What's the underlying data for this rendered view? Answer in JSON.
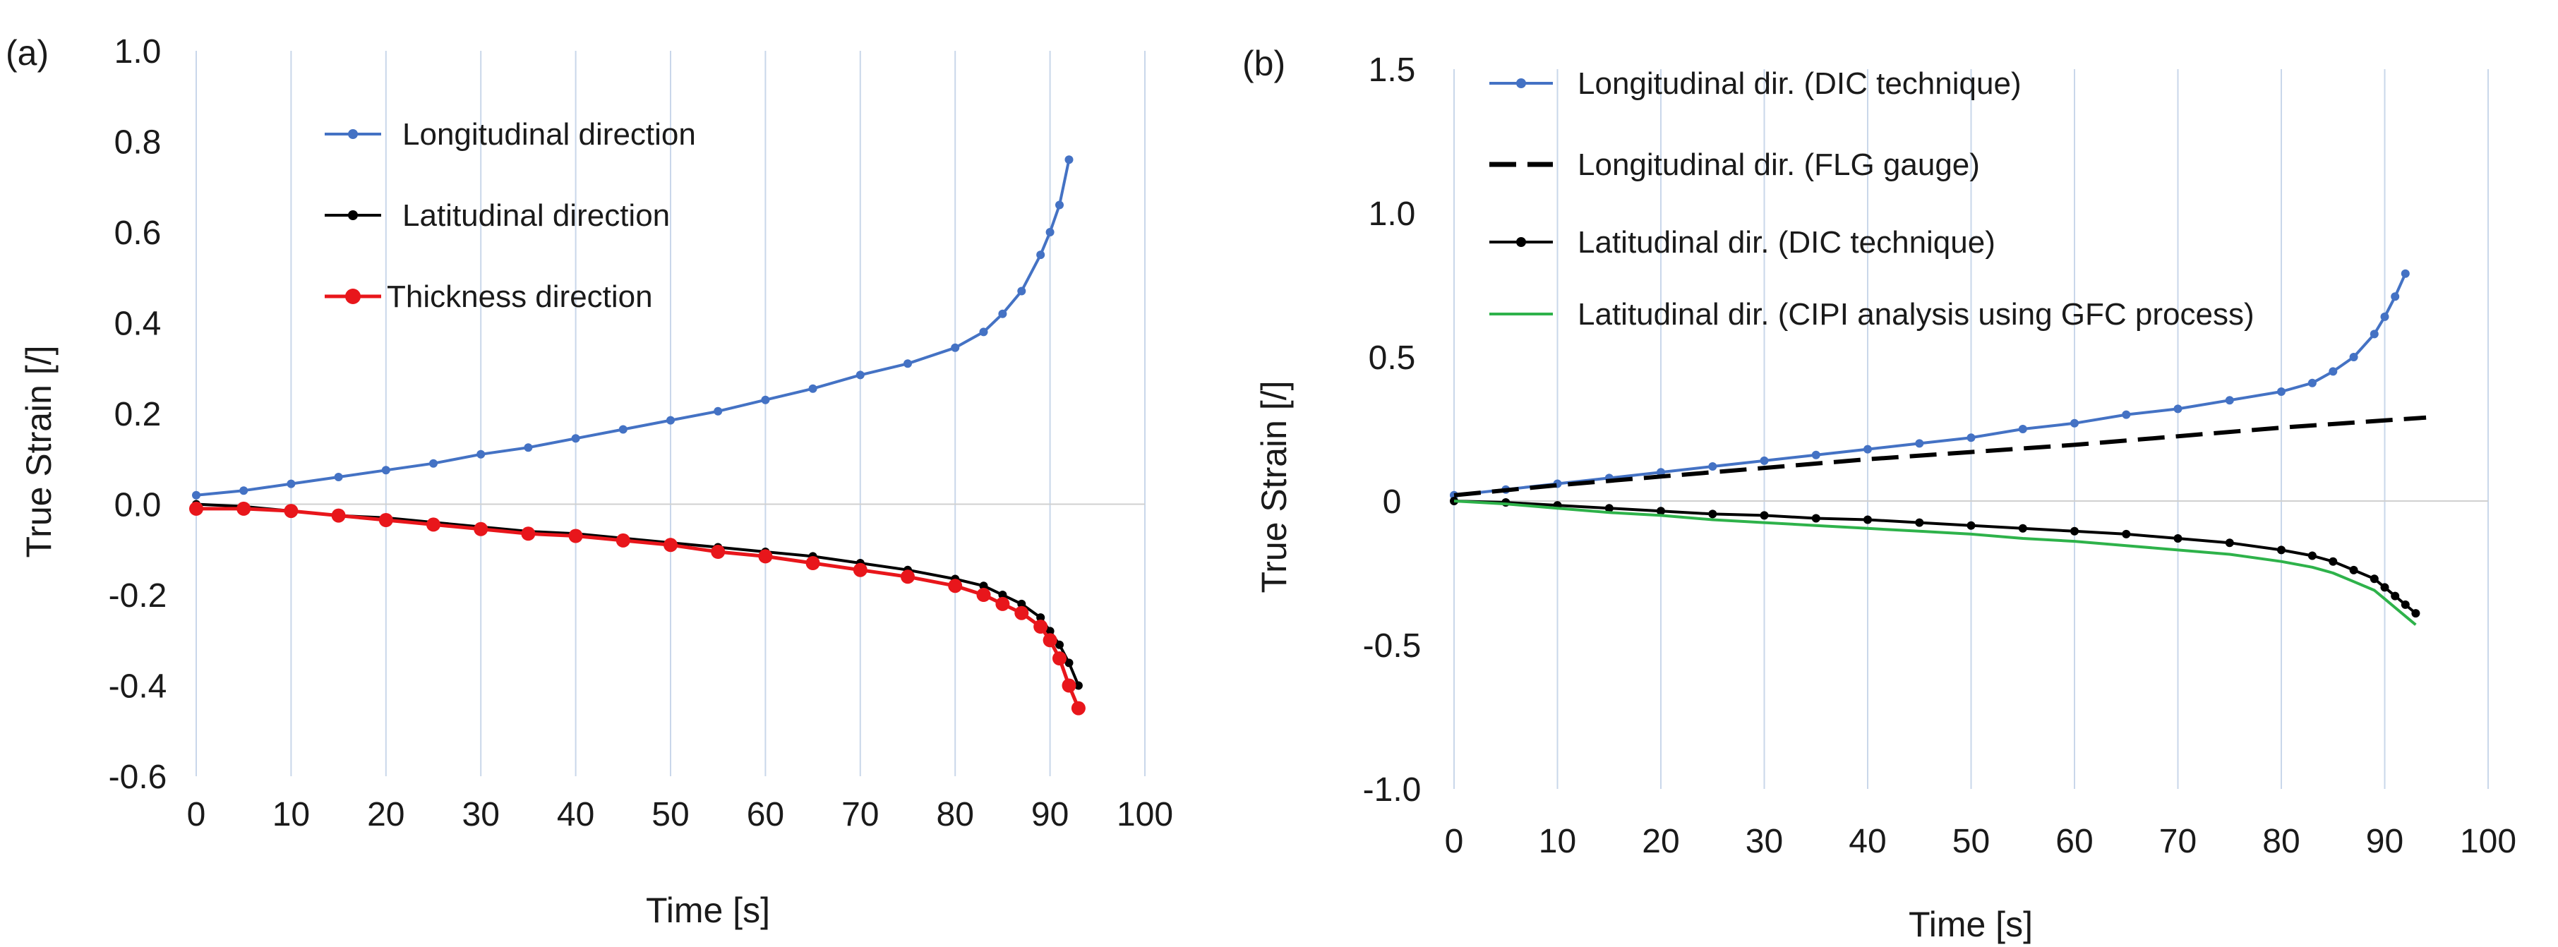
{
  "chart_data": [
    {
      "type": "line",
      "panel_label": "(a)",
      "xlabel": "Time [s]",
      "ylabel": "True Strain [/]",
      "xlim": [
        0,
        100
      ],
      "ylim": [
        -0.6,
        1.0
      ],
      "xticks": [
        0,
        10,
        20,
        30,
        40,
        50,
        60,
        70,
        80,
        90,
        100
      ],
      "xtick_labels": [
        "0",
        "10",
        "20",
        "30",
        "40",
        "50",
        "60",
        "70",
        "80",
        "90",
        "100"
      ],
      "yticks": [
        -0.6,
        -0.4,
        -0.2,
        0,
        0.2,
        0.4,
        0.6,
        0.8,
        1.0
      ],
      "ytick_labels": [
        "-0.6",
        "-0.4",
        "-0.2",
        "0.0",
        "0.2",
        "0.4",
        "0.6",
        "0.8",
        "1.0"
      ],
      "grid": "vertical",
      "legend_position": "top-left",
      "series": [
        {
          "name": "Longitudinal direction",
          "color": "#4472c4",
          "style": "line-markers",
          "x": [
            0,
            5,
            10,
            15,
            20,
            25,
            30,
            35,
            40,
            45,
            50,
            55,
            60,
            65,
            70,
            75,
            80,
            83,
            85,
            87,
            89,
            90,
            91,
            92
          ],
          "y": [
            0.02,
            0.03,
            0.045,
            0.06,
            0.075,
            0.09,
            0.11,
            0.125,
            0.145,
            0.165,
            0.185,
            0.205,
            0.23,
            0.255,
            0.285,
            0.31,
            0.345,
            0.38,
            0.42,
            0.47,
            0.55,
            0.6,
            0.66,
            0.76
          ]
        },
        {
          "name": "Latitudinal direction",
          "color": "#000000",
          "style": "line-markers",
          "x": [
            0,
            5,
            10,
            15,
            20,
            25,
            30,
            35,
            40,
            45,
            50,
            55,
            60,
            65,
            70,
            75,
            80,
            83,
            85,
            87,
            89,
            90,
            91,
            92,
            93
          ],
          "y": [
            0.0,
            -0.005,
            -0.015,
            -0.025,
            -0.03,
            -0.04,
            -0.05,
            -0.06,
            -0.065,
            -0.075,
            -0.085,
            -0.095,
            -0.105,
            -0.115,
            -0.13,
            -0.145,
            -0.165,
            -0.18,
            -0.2,
            -0.22,
            -0.25,
            -0.28,
            -0.31,
            -0.35,
            -0.4
          ]
        },
        {
          "name": "Thickness direction",
          "color": "#e8161b",
          "style": "line-markers",
          "x": [
            0,
            5,
            10,
            15,
            20,
            25,
            30,
            35,
            40,
            45,
            50,
            55,
            60,
            65,
            70,
            75,
            80,
            83,
            85,
            87,
            89,
            90,
            91,
            92,
            93
          ],
          "y": [
            -0.01,
            -0.01,
            -0.015,
            -0.025,
            -0.035,
            -0.045,
            -0.055,
            -0.065,
            -0.07,
            -0.08,
            -0.09,
            -0.105,
            -0.115,
            -0.13,
            -0.145,
            -0.16,
            -0.18,
            -0.2,
            -0.22,
            -0.24,
            -0.27,
            -0.3,
            -0.34,
            -0.4,
            -0.45
          ]
        }
      ]
    },
    {
      "type": "line",
      "panel_label": "(b)",
      "xlabel": "Time [s]",
      "ylabel": "True Strain [/]",
      "xlim": [
        0,
        100
      ],
      "ylim": [
        -1.0,
        1.5
      ],
      "xticks": [
        0,
        10,
        20,
        30,
        40,
        50,
        60,
        70,
        80,
        90,
        100
      ],
      "xtick_labels": [
        "0",
        "10",
        "20",
        "30",
        "40",
        "50",
        "60",
        "70",
        "80",
        "90",
        "100"
      ],
      "yticks": [
        -1.0,
        -0.5,
        0,
        0.5,
        1.0,
        1.5
      ],
      "ytick_labels": [
        "-1.0",
        "-0.5",
        "0",
        "0.5",
        "1.0",
        "1.5"
      ],
      "grid": "vertical",
      "legend_position": "top-left",
      "series": [
        {
          "name": "Longitudinal dir. (DIC technique)",
          "color": "#4472c4",
          "style": "line-markers",
          "x": [
            0,
            5,
            10,
            15,
            20,
            25,
            30,
            35,
            40,
            45,
            50,
            55,
            60,
            65,
            70,
            75,
            80,
            83,
            85,
            87,
            89,
            90,
            91,
            92
          ],
          "y": [
            0.02,
            0.04,
            0.06,
            0.08,
            0.1,
            0.12,
            0.14,
            0.16,
            0.18,
            0.2,
            0.22,
            0.25,
            0.27,
            0.3,
            0.32,
            0.35,
            0.38,
            0.41,
            0.45,
            0.5,
            0.58,
            0.64,
            0.71,
            0.79
          ]
        },
        {
          "name": "Longitudinal dir. (FLG gauge)",
          "color": "#000000",
          "style": "dashed",
          "x": [
            0,
            10,
            20,
            30,
            40,
            50,
            60,
            70,
            80,
            90,
            94
          ],
          "y": [
            0.02,
            0.055,
            0.085,
            0.115,
            0.145,
            0.17,
            0.195,
            0.225,
            0.255,
            0.28,
            0.29
          ]
        },
        {
          "name": "Latitudinal dir. (DIC technique)",
          "color": "#000000",
          "style": "line-markers",
          "x": [
            0,
            5,
            10,
            15,
            20,
            25,
            30,
            35,
            40,
            45,
            50,
            55,
            60,
            65,
            70,
            75,
            80,
            83,
            85,
            87,
            89,
            90,
            91,
            92,
            93
          ],
          "y": [
            0.0,
            -0.005,
            -0.015,
            -0.025,
            -0.035,
            -0.045,
            -0.05,
            -0.06,
            -0.065,
            -0.075,
            -0.085,
            -0.095,
            -0.105,
            -0.115,
            -0.13,
            -0.145,
            -0.17,
            -0.19,
            -0.21,
            -0.24,
            -0.27,
            -0.3,
            -0.33,
            -0.36,
            -0.39
          ]
        },
        {
          "name": "Latitudinal dir. (CIPI analysis using GFC process)",
          "color": "#2eb24a",
          "style": "line",
          "x": [
            0,
            5,
            10,
            15,
            20,
            25,
            30,
            35,
            40,
            45,
            50,
            55,
            60,
            65,
            70,
            75,
            80,
            83,
            85,
            87,
            89,
            90,
            91,
            92,
            93
          ],
          "y": [
            0.0,
            -0.01,
            -0.025,
            -0.04,
            -0.05,
            -0.065,
            -0.075,
            -0.085,
            -0.095,
            -0.105,
            -0.115,
            -0.13,
            -0.14,
            -0.155,
            -0.17,
            -0.185,
            -0.21,
            -0.23,
            -0.25,
            -0.28,
            -0.31,
            -0.34,
            -0.37,
            -0.4,
            -0.43
          ]
        }
      ]
    }
  ]
}
